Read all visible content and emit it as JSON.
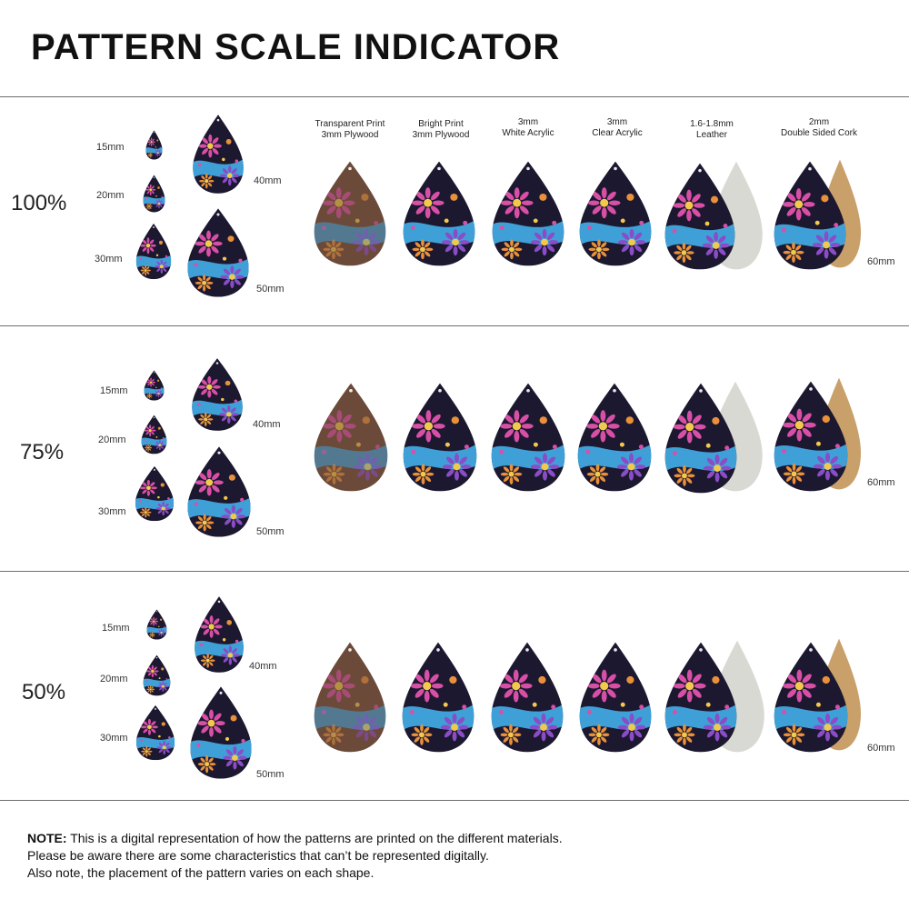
{
  "title": "PATTERN SCALE INDICATOR",
  "materials": [
    {
      "line1": "Transparent Print",
      "line2": "3mm Plywood",
      "type": "wood-print"
    },
    {
      "line1": "Bright Print",
      "line2": "3mm Plywood",
      "type": "bright"
    },
    {
      "line1": "3mm",
      "line2": "White Acrylic",
      "type": "bright"
    },
    {
      "line1": "3mm",
      "line2": "Clear Acrylic",
      "type": "bright"
    },
    {
      "line1": "1.6-1.8mm",
      "line2": "Leather",
      "type": "leather"
    },
    {
      "line1": "2mm",
      "line2": "Double Sided Cork",
      "type": "cork"
    }
  ],
  "sizes": {
    "s15": "15mm",
    "s20": "20mm",
    "s30": "30mm",
    "s40": "40mm",
    "s50": "50mm",
    "s60": "60mm"
  },
  "rows": [
    {
      "scale": "100%"
    },
    {
      "scale": "75%"
    },
    {
      "scale": "50%"
    }
  ],
  "colors": {
    "dark": "#1c1830",
    "pink": "#d84fa6",
    "purple": "#8a4cc7",
    "blue": "#3fa0d8",
    "orange": "#e8913a",
    "yellow": "#f2c94c",
    "leather": "#d9d9d4",
    "cork": "#c9a06a",
    "wood": "#6b4a3a"
  },
  "note": {
    "label": "NOTE:",
    "line1": " This is a digital representation of how the patterns are printed on the different materials.",
    "line2": "Please be aware there are some characteristics that can’t be represented digitally.",
    "line3": "Also note, the placement of the pattern varies on each shape."
  }
}
